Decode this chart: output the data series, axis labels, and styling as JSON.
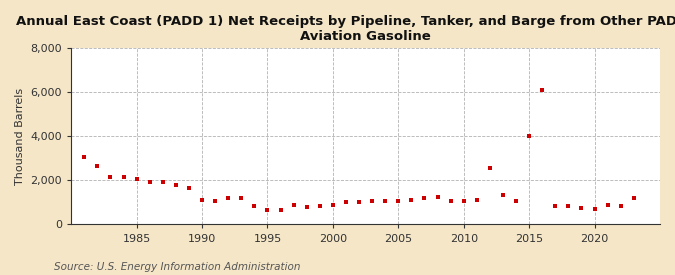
{
  "title": "Annual East Coast (PADD 1) Net Receipts by Pipeline, Tanker, and Barge from Other PADDs of\nAviation Gasoline",
  "ylabel": "Thousand Barrels",
  "source": "Source: U.S. Energy Information Administration",
  "figure_bg": "#f5e6c8",
  "plot_bg": "#ffffff",
  "dot_color": "#cc0000",
  "grid_color": "#aaaaaa",
  "ylim": [
    0,
    8000
  ],
  "yticks": [
    0,
    2000,
    4000,
    6000,
    8000
  ],
  "xlim": [
    1980,
    2025
  ],
  "xticks": [
    1985,
    1990,
    1995,
    2000,
    2005,
    2010,
    2015,
    2020
  ],
  "years": [
    1981,
    1982,
    1983,
    1984,
    1985,
    1986,
    1987,
    1988,
    1989,
    1990,
    1991,
    1992,
    1993,
    1994,
    1995,
    1996,
    1997,
    1998,
    1999,
    2000,
    2001,
    2002,
    2003,
    2004,
    2005,
    2006,
    2007,
    2008,
    2009,
    2010,
    2011,
    2012,
    2013,
    2014,
    2015,
    2016,
    2017,
    2018,
    2019,
    2020,
    2021,
    2022,
    2023
  ],
  "values": [
    3050,
    2650,
    2150,
    2150,
    2050,
    1950,
    1950,
    1800,
    1650,
    1100,
    1050,
    1200,
    1200,
    850,
    650,
    650,
    900,
    800,
    850,
    900,
    1000,
    1000,
    1050,
    1050,
    1050,
    1100,
    1200,
    1250,
    1050,
    1050,
    1100,
    2550,
    1350,
    1050,
    4000,
    6100,
    850,
    850,
    750,
    700,
    900,
    850,
    1200
  ],
  "title_fontsize": 9.5,
  "tick_fontsize": 8,
  "ylabel_fontsize": 8,
  "source_fontsize": 7.5,
  "dot_size": 12
}
